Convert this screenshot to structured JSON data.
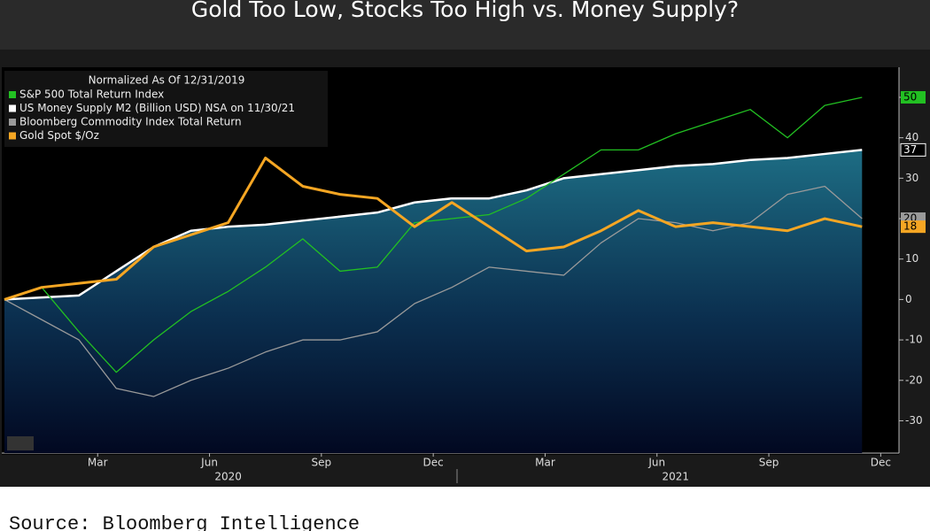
{
  "chart_data": {
    "type": "line",
    "title": "Gold Too Low, Stocks Too High vs. Money Supply?",
    "legend_title": "Normalized As Of 12/31/2019",
    "source": "Source: Bloomberg Intelligence",
    "x": [
      "2020-01",
      "2020-02",
      "2020-03",
      "2020-04",
      "2020-05",
      "2020-06",
      "2020-07",
      "2020-08",
      "2020-09",
      "2020-10",
      "2020-11",
      "2020-12",
      "2021-01",
      "2021-02",
      "2021-03",
      "2021-04",
      "2021-05",
      "2021-06",
      "2021-07",
      "2021-08",
      "2021-09",
      "2021-10",
      "2021-11",
      "2021-12"
    ],
    "series": [
      {
        "name": "S&P 500 Total Return Index",
        "color": "#22c022",
        "values": [
          0,
          3,
          -8,
          -18,
          -10,
          -3,
          2,
          8,
          15,
          7,
          8,
          19,
          20,
          21,
          25,
          31,
          37,
          37,
          41,
          44,
          47,
          40,
          48,
          50
        ]
      },
      {
        "name": "US Money Supply M2 (Billion USD) NSA on 11/30/21",
        "color": "#ffffff",
        "area": true,
        "values": [
          0,
          0.5,
          1,
          7,
          13,
          17,
          18,
          18.5,
          19.5,
          20.5,
          21.5,
          24,
          25,
          25,
          27,
          30,
          31,
          32,
          33,
          33.5,
          34.5,
          35,
          36,
          37
        ]
      },
      {
        "name": "Bloomberg Commodity Index Total Return",
        "color": "#9a9a9a",
        "values": [
          0,
          -5,
          -10,
          -22,
          -24,
          -20,
          -17,
          -13,
          -10,
          -10,
          -8,
          -1,
          3,
          8,
          7,
          6,
          14,
          20,
          19,
          17,
          19,
          26,
          28,
          20
        ]
      },
      {
        "name": "Gold Spot $/Oz",
        "color": "#f5a623",
        "values": [
          0,
          3,
          4,
          5,
          13,
          16,
          19,
          35,
          28,
          26,
          25,
          18,
          24,
          18,
          12,
          13,
          17,
          22,
          18,
          19,
          18,
          17,
          20,
          18
        ]
      }
    ],
    "ylim": [
      -38,
      57
    ],
    "yticks": [
      -30,
      -20,
      -10,
      0,
      10,
      20,
      30,
      40,
      50
    ],
    "xticks": [
      {
        "value": "2020-03",
        "label": "Mar"
      },
      {
        "value": "2020-06",
        "label": "Jun"
      },
      {
        "value": "2020-09",
        "label": "Sep"
      },
      {
        "value": "2020-12",
        "label": "Dec"
      },
      {
        "value": "2021-03",
        "label": "Mar"
      },
      {
        "value": "2021-06",
        "label": "Jun"
      },
      {
        "value": "2021-09",
        "label": "Sep"
      },
      {
        "value": "2021-12",
        "label": "Dec"
      }
    ],
    "x_group_labels": [
      {
        "value": "2020-07",
        "label": "2020"
      },
      {
        "value": "2021-07",
        "label": "2021"
      }
    ],
    "legend": "upper left"
  }
}
